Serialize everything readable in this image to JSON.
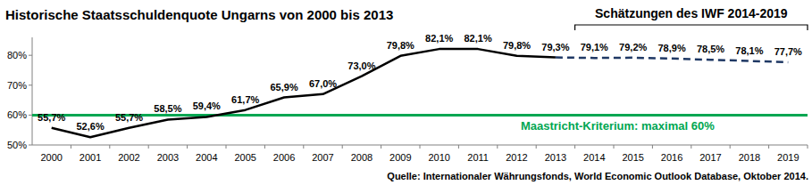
{
  "chart_data": {
    "type": "line",
    "title": "Historische Staatsschuldenquote Ungarns von 2000 bis 2013",
    "annotation": "Schätzungen des IWF 2014-2019",
    "source": "Quelle: Internationaler Währungsfonds, World Economic Outlook Database, Oktober 2014.",
    "categories": [
      "2000",
      "2001",
      "2002",
      "2003",
      "2004",
      "2005",
      "2006",
      "2007",
      "2008",
      "2009",
      "2010",
      "2011",
      "2012",
      "2013",
      "2014",
      "2015",
      "2016",
      "2017",
      "2018",
      "2019"
    ],
    "series": [
      {
        "color": "#000000",
        "line_style": "solid",
        "values": [
          55.7,
          52.6,
          55.7,
          58.5,
          59.4,
          61.7,
          65.9,
          67.0,
          73.0,
          79.8,
          82.1,
          82.1,
          79.8,
          79.3,
          null,
          null,
          null,
          null,
          null,
          null
        ],
        "value_labels": [
          "55,7%",
          "52,6%",
          "55,7%",
          "58,5%",
          "59,4%",
          "61,7%",
          "65,9%",
          "67,0%",
          "73,0%",
          "79,8%",
          "82,1%",
          "82,1%",
          "79,8%",
          "79,3%",
          null,
          null,
          null,
          null,
          null,
          null
        ]
      },
      {
        "color": "#1f3864",
        "line_style": "dashed",
        "values": [
          null,
          null,
          null,
          null,
          null,
          null,
          null,
          null,
          null,
          null,
          null,
          null,
          null,
          79.3,
          79.1,
          79.2,
          78.9,
          78.5,
          78.1,
          77.7
        ],
        "value_labels": [
          null,
          null,
          null,
          null,
          null,
          null,
          null,
          null,
          null,
          null,
          null,
          null,
          null,
          null,
          "79,1%",
          "79,2%",
          "78,9%",
          "78,5%",
          "78,1%",
          "77,7%"
        ]
      }
    ],
    "reference_line": {
      "value": 60,
      "label": "Maastricht-Kriterium: maximal 60%",
      "color": "#00a651"
    },
    "ylim": [
      50,
      86
    ],
    "yticks": [
      {
        "value": 50,
        "label": "50%"
      },
      {
        "value": 60,
        "label": "60%"
      },
      {
        "value": 70,
        "label": "70%"
      },
      {
        "value": 80,
        "label": "80%"
      }
    ],
    "grid": false,
    "data_labels": true
  }
}
